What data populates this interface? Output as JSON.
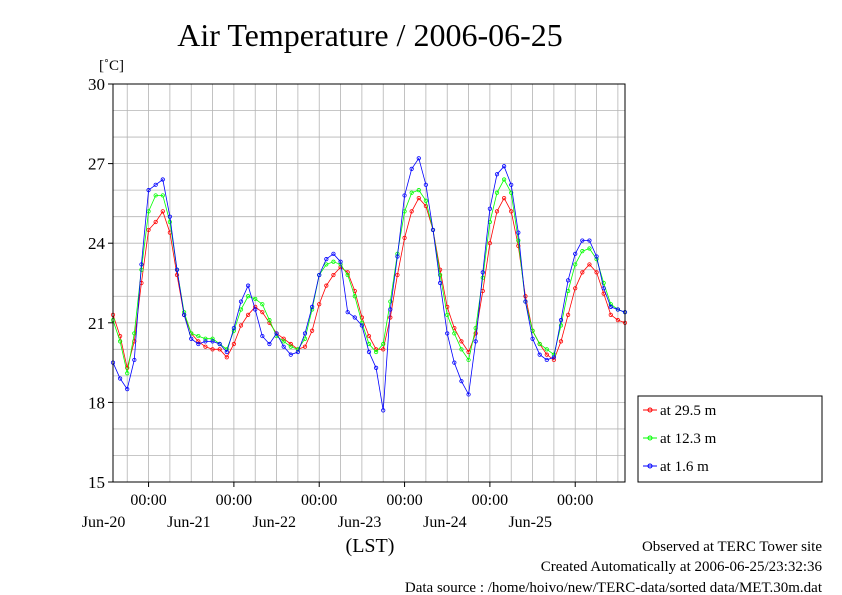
{
  "chart_data": {
    "type": "line",
    "title": "Air Temperature / 2006-06-25",
    "ylabel": "[˚C]",
    "xlabel": "(LST)",
    "ylim": [
      15,
      30
    ],
    "yticks": [
      15,
      18,
      21,
      24,
      27,
      30
    ],
    "x_unit": "hours from 2006-06-19 00:00 LST",
    "xlim": [
      14,
      158
    ],
    "xticks": [
      {
        "x": 24,
        "time": "00:00",
        "date": "Jun-20"
      },
      {
        "x": 48,
        "time": "00:00",
        "date": "Jun-21"
      },
      {
        "x": 72,
        "time": "00:00",
        "date": "Jun-22"
      },
      {
        "x": 96,
        "time": "00:00",
        "date": "Jun-23"
      },
      {
        "x": 120,
        "time": "00:00",
        "date": "Jun-24"
      },
      {
        "x": 144,
        "time": "00:00",
        "date": "Jun-25"
      }
    ],
    "grid": true,
    "legend_position": "right",
    "series": [
      {
        "name": "at 29.5 m",
        "color": "#ff0000",
        "points": [
          [
            14,
            21.3
          ],
          [
            16,
            20.5
          ],
          [
            18,
            19.3
          ],
          [
            20,
            20.3
          ],
          [
            22,
            22.5
          ],
          [
            24,
            24.5
          ],
          [
            26,
            24.8
          ],
          [
            28,
            25.2
          ],
          [
            30,
            24.4
          ],
          [
            32,
            22.8
          ],
          [
            34,
            21.3
          ],
          [
            36,
            20.6
          ],
          [
            38,
            20.3
          ],
          [
            40,
            20.1
          ],
          [
            42,
            20.0
          ],
          [
            44,
            20.0
          ],
          [
            46,
            19.7
          ],
          [
            48,
            20.2
          ],
          [
            50,
            20.9
          ],
          [
            52,
            21.3
          ],
          [
            54,
            21.6
          ],
          [
            56,
            21.4
          ],
          [
            58,
            21.0
          ],
          [
            60,
            20.6
          ],
          [
            62,
            20.4
          ],
          [
            64,
            20.2
          ],
          [
            66,
            20.0
          ],
          [
            68,
            20.1
          ],
          [
            70,
            20.7
          ],
          [
            72,
            21.7
          ],
          [
            74,
            22.4
          ],
          [
            76,
            22.8
          ],
          [
            78,
            23.1
          ],
          [
            80,
            22.9
          ],
          [
            82,
            22.2
          ],
          [
            84,
            21.2
          ],
          [
            86,
            20.5
          ],
          [
            88,
            20.0
          ],
          [
            90,
            20.0
          ],
          [
            92,
            21.2
          ],
          [
            94,
            22.8
          ],
          [
            96,
            24.2
          ],
          [
            98,
            25.2
          ],
          [
            100,
            25.7
          ],
          [
            102,
            25.4
          ],
          [
            104,
            24.5
          ],
          [
            106,
            23.0
          ],
          [
            108,
            21.6
          ],
          [
            110,
            20.8
          ],
          [
            112,
            20.3
          ],
          [
            114,
            19.9
          ],
          [
            116,
            20.6
          ],
          [
            118,
            22.2
          ],
          [
            120,
            24.0
          ],
          [
            122,
            25.2
          ],
          [
            124,
            25.7
          ],
          [
            126,
            25.2
          ],
          [
            128,
            23.9
          ],
          [
            130,
            22.0
          ],
          [
            132,
            20.7
          ],
          [
            134,
            20.2
          ],
          [
            136,
            19.8
          ],
          [
            138,
            19.6
          ],
          [
            140,
            20.3
          ],
          [
            142,
            21.3
          ],
          [
            144,
            22.3
          ],
          [
            146,
            22.9
          ],
          [
            148,
            23.2
          ],
          [
            150,
            22.9
          ],
          [
            152,
            22.1
          ],
          [
            154,
            21.3
          ],
          [
            156,
            21.1
          ],
          [
            158,
            21.0
          ]
        ]
      },
      {
        "name": "at 12.3 m",
        "color": "#00ff00",
        "points": [
          [
            14,
            21.1
          ],
          [
            16,
            20.3
          ],
          [
            18,
            19.1
          ],
          [
            20,
            20.6
          ],
          [
            22,
            23.0
          ],
          [
            24,
            25.2
          ],
          [
            26,
            25.8
          ],
          [
            28,
            25.8
          ],
          [
            30,
            24.8
          ],
          [
            32,
            23.0
          ],
          [
            34,
            21.4
          ],
          [
            36,
            20.6
          ],
          [
            38,
            20.5
          ],
          [
            40,
            20.4
          ],
          [
            42,
            20.4
          ],
          [
            44,
            20.2
          ],
          [
            46,
            20.0
          ],
          [
            48,
            20.7
          ],
          [
            50,
            21.5
          ],
          [
            52,
            22.0
          ],
          [
            54,
            21.9
          ],
          [
            56,
            21.7
          ],
          [
            58,
            21.1
          ],
          [
            60,
            20.5
          ],
          [
            62,
            20.3
          ],
          [
            64,
            20.1
          ],
          [
            66,
            20.0
          ],
          [
            68,
            20.4
          ],
          [
            70,
            21.5
          ],
          [
            72,
            22.8
          ],
          [
            74,
            23.2
          ],
          [
            76,
            23.3
          ],
          [
            78,
            23.2
          ],
          [
            80,
            22.8
          ],
          [
            82,
            22.0
          ],
          [
            84,
            21.0
          ],
          [
            86,
            20.2
          ],
          [
            88,
            19.9
          ],
          [
            90,
            20.2
          ],
          [
            92,
            21.8
          ],
          [
            94,
            23.6
          ],
          [
            96,
            25.2
          ],
          [
            98,
            25.9
          ],
          [
            100,
            26.0
          ],
          [
            102,
            25.6
          ],
          [
            104,
            24.5
          ],
          [
            106,
            22.8
          ],
          [
            108,
            21.3
          ],
          [
            110,
            20.6
          ],
          [
            112,
            20.0
          ],
          [
            114,
            19.6
          ],
          [
            116,
            20.8
          ],
          [
            118,
            22.7
          ],
          [
            120,
            24.8
          ],
          [
            122,
            25.9
          ],
          [
            124,
            26.4
          ],
          [
            126,
            25.9
          ],
          [
            128,
            24.1
          ],
          [
            130,
            21.8
          ],
          [
            132,
            20.7
          ],
          [
            134,
            20.2
          ],
          [
            136,
            20.0
          ],
          [
            138,
            19.8
          ],
          [
            140,
            20.9
          ],
          [
            142,
            22.2
          ],
          [
            144,
            23.2
          ],
          [
            146,
            23.7
          ],
          [
            148,
            23.8
          ],
          [
            150,
            23.4
          ],
          [
            152,
            22.5
          ],
          [
            154,
            21.7
          ],
          [
            156,
            21.5
          ],
          [
            158,
            21.4
          ]
        ]
      },
      {
        "name": "at 1.6 m",
        "color": "#0000ff",
        "points": [
          [
            14,
            19.5
          ],
          [
            16,
            18.9
          ],
          [
            18,
            18.5
          ],
          [
            20,
            19.6
          ],
          [
            22,
            23.2
          ],
          [
            24,
            26.0
          ],
          [
            26,
            26.2
          ],
          [
            28,
            26.4
          ],
          [
            30,
            25.0
          ],
          [
            32,
            23.0
          ],
          [
            34,
            21.3
          ],
          [
            36,
            20.4
          ],
          [
            38,
            20.2
          ],
          [
            40,
            20.3
          ],
          [
            42,
            20.3
          ],
          [
            44,
            20.2
          ],
          [
            46,
            19.9
          ],
          [
            48,
            20.8
          ],
          [
            50,
            21.8
          ],
          [
            52,
            22.4
          ],
          [
            54,
            21.5
          ],
          [
            56,
            20.5
          ],
          [
            58,
            20.2
          ],
          [
            60,
            20.6
          ],
          [
            62,
            20.1
          ],
          [
            64,
            19.8
          ],
          [
            66,
            19.9
          ],
          [
            68,
            20.6
          ],
          [
            70,
            21.6
          ],
          [
            72,
            22.8
          ],
          [
            74,
            23.4
          ],
          [
            76,
            23.6
          ],
          [
            78,
            23.3
          ],
          [
            80,
            21.4
          ],
          [
            82,
            21.2
          ],
          [
            84,
            20.9
          ],
          [
            86,
            19.9
          ],
          [
            88,
            19.3
          ],
          [
            90,
            17.7
          ],
          [
            92,
            21.5
          ],
          [
            94,
            23.5
          ],
          [
            96,
            25.8
          ],
          [
            98,
            26.8
          ],
          [
            100,
            27.2
          ],
          [
            102,
            26.2
          ],
          [
            104,
            24.5
          ],
          [
            106,
            22.5
          ],
          [
            108,
            20.6
          ],
          [
            110,
            19.5
          ],
          [
            112,
            18.8
          ],
          [
            114,
            18.3
          ],
          [
            116,
            20.3
          ],
          [
            118,
            22.9
          ],
          [
            120,
            25.3
          ],
          [
            122,
            26.6
          ],
          [
            124,
            26.9
          ],
          [
            126,
            26.2
          ],
          [
            128,
            24.4
          ],
          [
            130,
            21.8
          ],
          [
            132,
            20.4
          ],
          [
            134,
            19.8
          ],
          [
            136,
            19.6
          ],
          [
            138,
            19.7
          ],
          [
            140,
            21.1
          ],
          [
            142,
            22.6
          ],
          [
            144,
            23.6
          ],
          [
            146,
            24.1
          ],
          [
            148,
            24.1
          ],
          [
            150,
            23.5
          ],
          [
            152,
            22.3
          ],
          [
            154,
            21.6
          ],
          [
            156,
            21.5
          ],
          [
            158,
            21.4
          ]
        ]
      }
    ]
  },
  "footer": {
    "site": "Observed at TERC Tower site",
    "created": "Created Automatically at 2006-06-25/23:32:36",
    "source": "Data source : /home/hoivo/new/TERC-data/sorted  data/MET.30m.dat"
  }
}
